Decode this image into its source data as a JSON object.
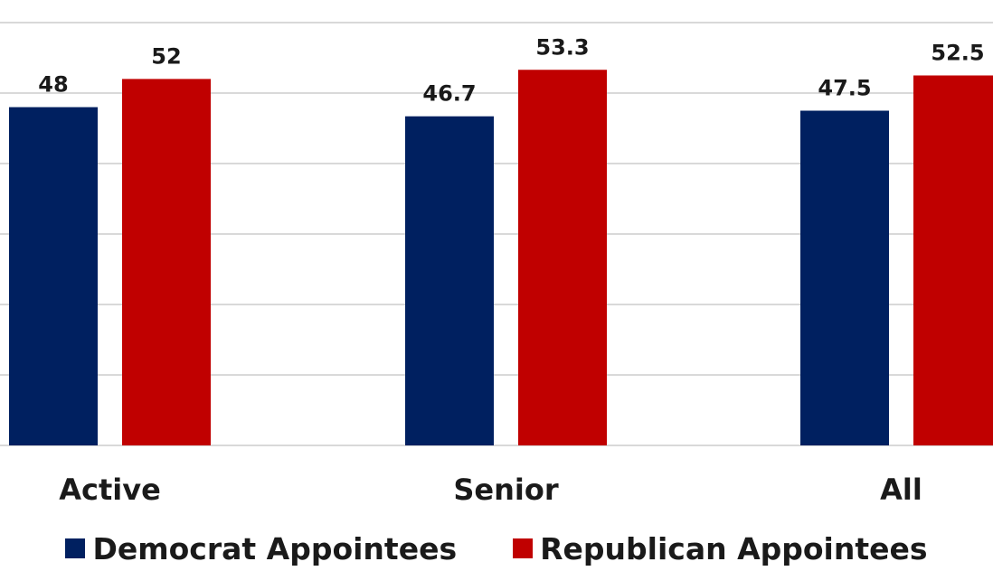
{
  "colors": {
    "democrat": "#002060",
    "republican": "#c00000",
    "grid": "#d9d9d9",
    "text": "#1a1a1a"
  },
  "chart_data": {
    "type": "bar",
    "categories": [
      "Active",
      "Senior",
      "All"
    ],
    "series": [
      {
        "name": "Democrat Appointees",
        "values": [
          48,
          46.7,
          47.5
        ],
        "labels": [
          "48",
          "46.7",
          "47.5"
        ]
      },
      {
        "name": "Republican Appointees",
        "values": [
          52,
          53.3,
          52.5
        ],
        "labels": [
          "52",
          "53.3",
          "52.5"
        ]
      }
    ],
    "ylim": [
      0,
      60
    ],
    "grid": true,
    "legend": "bottom",
    "data_labels": true
  },
  "legend": {
    "democrat_label": "Democrat Appointees",
    "republican_label": "Republican Appointees"
  }
}
